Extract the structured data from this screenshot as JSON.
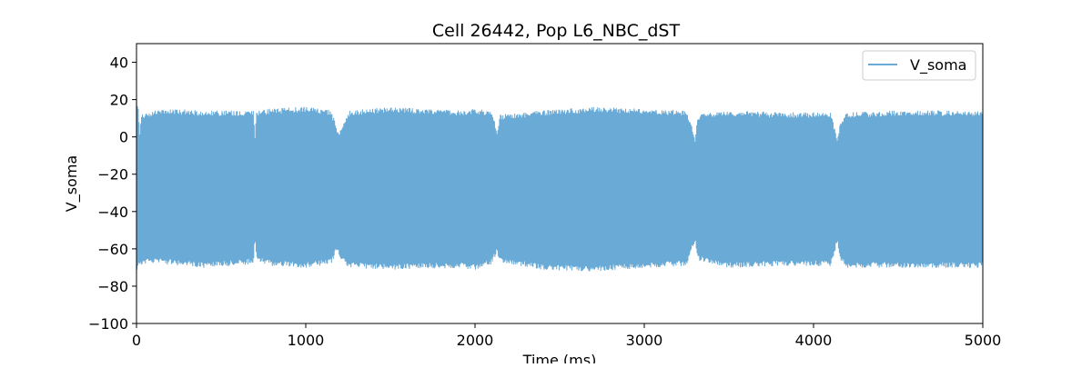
{
  "chart_data": {
    "type": "line",
    "title": "Cell 26442, Pop L6_NBC_dST",
    "xlabel": "Time (ms)",
    "ylabel": "V_soma",
    "xlim": [
      0,
      5000
    ],
    "ylim": [
      -100,
      50
    ],
    "xticks": [
      0,
      1000,
      2000,
      3000,
      4000,
      5000
    ],
    "xtick_labels": [
      "0",
      "1000",
      "2000",
      "3000",
      "4000",
      "5000"
    ],
    "yticks": [
      -100,
      -80,
      -60,
      -40,
      -20,
      0,
      20,
      40
    ],
    "ytick_labels": [
      "−100",
      "−80",
      "−60",
      "−40",
      "−20",
      "0",
      "20",
      "40"
    ],
    "grid": false,
    "legend": {
      "position": "top-right"
    },
    "series": [
      {
        "name": "V_soma",
        "color": "#6aaad6",
        "envelope": {
          "time_ms": [
            0,
            10,
            20,
            30,
            150,
            400,
            690,
            700,
            710,
            800,
            1000,
            1150,
            1180,
            1200,
            1230,
            1260,
            1500,
            1900,
            2000,
            2100,
            2130,
            2150,
            2400,
            2700,
            3000,
            3250,
            3300,
            3320,
            3500,
            3800,
            4100,
            4140,
            4160,
            4200,
            4500,
            4800,
            5000
          ],
          "upper_mv": [
            20,
            16,
            3,
            12,
            15,
            14,
            14,
            2,
            14,
            15,
            16,
            14,
            6,
            3,
            10,
            14,
            16,
            14,
            15,
            14,
            4,
            12,
            14,
            16,
            15,
            14,
            0,
            12,
            14,
            13,
            13,
            0,
            9,
            13,
            14,
            14,
            14
          ],
          "lower_mv": [
            -73,
            -70,
            -69,
            -68,
            -68,
            -70,
            -68,
            -56,
            -67,
            -69,
            -70,
            -68,
            -62,
            -64,
            -68,
            -70,
            -71,
            -70,
            -71,
            -68,
            -62,
            -67,
            -71,
            -72,
            -70,
            -69,
            -56,
            -66,
            -70,
            -69,
            -69,
            -57,
            -66,
            -70,
            -70,
            -70,
            -70
          ]
        }
      }
    ]
  }
}
